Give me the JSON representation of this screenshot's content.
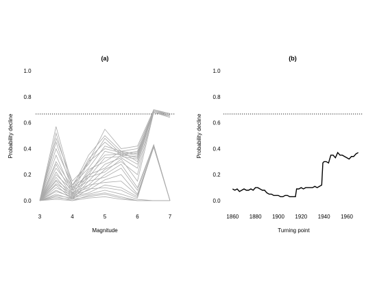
{
  "chart_data": [
    {
      "panel": "(a)",
      "type": "line",
      "xlabel": "Magnitude",
      "ylabel": "Probability decline",
      "xlim": [
        3,
        7
      ],
      "ylim": [
        0,
        1.0
      ],
      "xticks": [
        "3",
        "4",
        "5",
        "6",
        "7"
      ],
      "yticks": [
        "0.0",
        "0.2",
        "0.4",
        "0.6",
        "0.8",
        "1.0"
      ],
      "reference_line": 0.667,
      "line_color": "#aaaaaa",
      "x": [
        3,
        3.5,
        4,
        4.5,
        5,
        5.5,
        6,
        6.5,
        7
      ],
      "series": [
        {
          "values": [
            0.0,
            0.57,
            0.12,
            0.3,
            0.55,
            0.4,
            0.42,
            0.7,
            0.67
          ]
        },
        {
          "values": [
            0.0,
            0.52,
            0.1,
            0.35,
            0.5,
            0.38,
            0.4,
            0.69,
            0.66
          ]
        },
        {
          "values": [
            0.0,
            0.48,
            0.15,
            0.28,
            0.48,
            0.36,
            0.38,
            0.68,
            0.65
          ]
        },
        {
          "values": [
            0.0,
            0.45,
            0.08,
            0.32,
            0.45,
            0.35,
            0.37,
            0.69,
            0.66
          ]
        },
        {
          "values": [
            0.0,
            0.4,
            0.12,
            0.25,
            0.42,
            0.38,
            0.36,
            0.7,
            0.67
          ]
        },
        {
          "values": [
            0.0,
            0.35,
            0.06,
            0.3,
            0.4,
            0.37,
            0.35,
            0.68,
            0.65
          ]
        },
        {
          "values": [
            0.0,
            0.3,
            0.1,
            0.2,
            0.38,
            0.35,
            0.34,
            0.69,
            0.66
          ]
        },
        {
          "values": [
            0.0,
            0.28,
            0.05,
            0.22,
            0.35,
            0.36,
            0.33,
            0.68,
            0.65
          ]
        },
        {
          "values": [
            0.0,
            0.25,
            0.09,
            0.18,
            0.33,
            0.34,
            0.32,
            0.7,
            0.67
          ]
        },
        {
          "values": [
            0.0,
            0.22,
            0.04,
            0.24,
            0.3,
            0.38,
            0.3,
            0.69,
            0.66
          ]
        },
        {
          "values": [
            0.0,
            0.2,
            0.08,
            0.15,
            0.28,
            0.33,
            0.25,
            0.68,
            0.65
          ]
        },
        {
          "values": [
            0.0,
            0.18,
            0.03,
            0.2,
            0.25,
            0.35,
            0.28,
            0.7,
            0.66
          ]
        },
        {
          "values": [
            0.0,
            0.16,
            0.06,
            0.12,
            0.24,
            0.3,
            0.2,
            0.69,
            0.65
          ]
        },
        {
          "values": [
            0.0,
            0.15,
            0.02,
            0.18,
            0.22,
            0.32,
            0.15,
            0.68,
            0.64
          ]
        },
        {
          "values": [
            0.0,
            0.13,
            0.05,
            0.1,
            0.2,
            0.28,
            0.1,
            0.43,
            0.0
          ]
        },
        {
          "values": [
            0.0,
            0.12,
            0.01,
            0.15,
            0.18,
            0.25,
            0.08,
            0.43,
            0.0
          ]
        },
        {
          "values": [
            0.0,
            0.1,
            0.04,
            0.08,
            0.16,
            0.2,
            0.05,
            0.42,
            0.0
          ]
        },
        {
          "values": [
            0.0,
            0.08,
            0.02,
            0.12,
            0.14,
            0.15,
            0.04,
            0.42,
            0.0
          ]
        },
        {
          "values": [
            0.0,
            0.07,
            0.03,
            0.06,
            0.12,
            0.1,
            0.03,
            0.41,
            0.0
          ]
        },
        {
          "values": [
            0.0,
            0.05,
            0.01,
            0.09,
            0.1,
            0.08,
            0.02,
            0.42,
            0.0
          ]
        },
        {
          "values": [
            0.0,
            0.04,
            0.02,
            0.05,
            0.08,
            0.05,
            0.01,
            0.0,
            0.0
          ]
        },
        {
          "values": [
            0.0,
            0.03,
            0.0,
            0.04,
            0.06,
            0.03,
            0.0,
            0.0,
            0.0
          ]
        },
        {
          "values": [
            0.0,
            0.02,
            0.01,
            0.03,
            0.05,
            0.02,
            0.0,
            0.0,
            0.0
          ]
        },
        {
          "values": [
            0.0,
            0.01,
            0.0,
            0.02,
            0.03,
            0.01,
            0.0,
            0.0,
            0.0
          ]
        }
      ]
    },
    {
      "panel": "(b)",
      "type": "line",
      "xlabel": "Turning point",
      "ylabel": "Probability decline",
      "xlim": [
        1855,
        1972
      ],
      "ylim": [
        0,
        1.0
      ],
      "xticks": [
        "1860",
        "1880",
        "1900",
        "1920",
        "1940",
        "1960"
      ],
      "yticks": [
        "0.0",
        "0.2",
        "0.4",
        "0.6",
        "0.8",
        "1.0"
      ],
      "reference_line": 0.667,
      "line_color": "#000000",
      "x": [
        1860,
        1862,
        1864,
        1866,
        1868,
        1870,
        1872,
        1874,
        1876,
        1878,
        1880,
        1882,
        1884,
        1886,
        1888,
        1890,
        1892,
        1894,
        1896,
        1898,
        1900,
        1902,
        1904,
        1906,
        1908,
        1910,
        1912,
        1914,
        1915,
        1916,
        1918,
        1920,
        1922,
        1924,
        1926,
        1928,
        1930,
        1932,
        1934,
        1936,
        1938,
        1939,
        1940,
        1942,
        1944,
        1946,
        1948,
        1950,
        1952,
        1954,
        1956,
        1958,
        1960,
        1962,
        1964,
        1966,
        1968,
        1970
      ],
      "values": [
        0.09,
        0.08,
        0.09,
        0.07,
        0.08,
        0.09,
        0.08,
        0.08,
        0.09,
        0.08,
        0.1,
        0.1,
        0.09,
        0.08,
        0.08,
        0.06,
        0.05,
        0.05,
        0.04,
        0.04,
        0.04,
        0.03,
        0.03,
        0.04,
        0.04,
        0.03,
        0.03,
        0.03,
        0.03,
        0.09,
        0.09,
        0.1,
        0.09,
        0.1,
        0.1,
        0.1,
        0.1,
        0.11,
        0.1,
        0.11,
        0.12,
        0.29,
        0.3,
        0.3,
        0.29,
        0.35,
        0.35,
        0.33,
        0.37,
        0.35,
        0.35,
        0.34,
        0.33,
        0.32,
        0.34,
        0.34,
        0.36,
        0.37
      ]
    }
  ]
}
